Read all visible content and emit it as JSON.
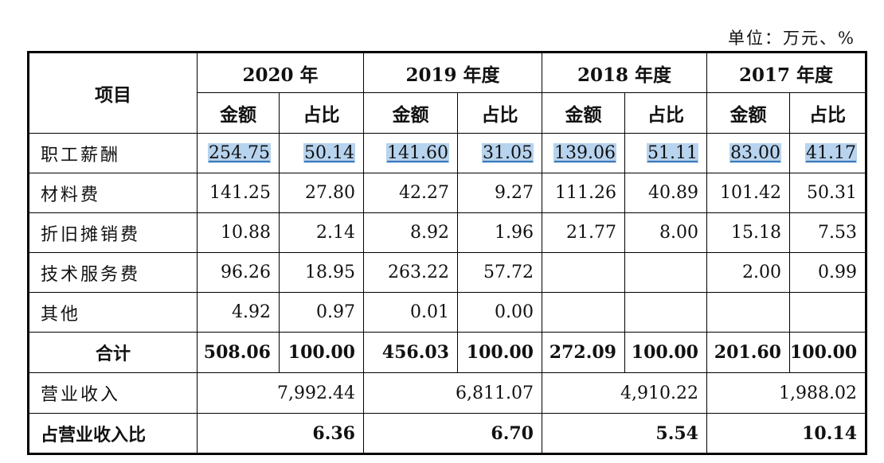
{
  "unit_note": "单位：万元、%",
  "table": {
    "header": {
      "item_label": "项目",
      "years": [
        "2020 年",
        "2019 年度",
        "2018 年度",
        "2017 年度"
      ],
      "sub_amount": "金额",
      "sub_ratio": "占比"
    },
    "rows": [
      {
        "label": "职工薪酬",
        "values": [
          "254.75",
          "50.14",
          "141.60",
          "31.05",
          "139.06",
          "51.11",
          "83.00",
          "41.17"
        ],
        "highlight": true
      },
      {
        "label": "材料费",
        "values": [
          "141.25",
          "27.80",
          "42.27",
          "9.27",
          "111.26",
          "40.89",
          "101.42",
          "50.31"
        ]
      },
      {
        "label": "折旧摊销费",
        "values": [
          "10.88",
          "2.14",
          "8.92",
          "1.96",
          "21.77",
          "8.00",
          "15.18",
          "7.53"
        ]
      },
      {
        "label": "技术服务费",
        "values": [
          "96.26",
          "18.95",
          "263.22",
          "57.72",
          "",
          "",
          "2.00",
          "0.99"
        ]
      },
      {
        "label": "其他",
        "values": [
          "4.92",
          "0.97",
          "0.01",
          "0.00",
          "",
          "",
          "",
          ""
        ]
      }
    ],
    "total": {
      "label": "合计",
      "values": [
        "508.06",
        "100.00",
        "456.03",
        "100.00",
        "272.09",
        "100.00",
        "201.60",
        "100.00"
      ]
    },
    "revenue": {
      "label": "营业收入",
      "values": [
        "7,992.44",
        "6,811.07",
        "4,910.22",
        "1,988.02"
      ]
    },
    "revenue_ratio": {
      "label": "占营业收入比",
      "values": [
        "6.36",
        "6.70",
        "5.54",
        "10.14"
      ]
    }
  }
}
